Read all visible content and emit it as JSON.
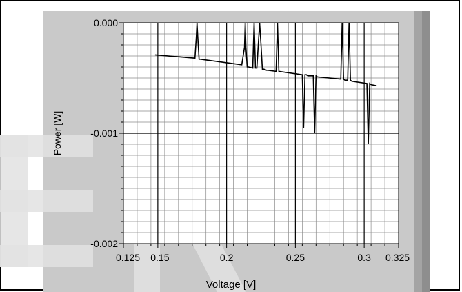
{
  "colors": {
    "panel": "#c9c9c9",
    "plot_bg": "#ffffff",
    "grid": "#000000",
    "trace": "#000000",
    "scroll_light": "#a4a4a4",
    "scroll_dark": "#8e8e8e",
    "watermark": "#e2e2e2"
  },
  "watermark": "ER",
  "chart_data": {
    "type": "line",
    "xlabel": "Voltage [V]",
    "ylabel": "Power [W]",
    "xlim": [
      0.125,
      0.325
    ],
    "ylim": [
      -0.002,
      0.0
    ],
    "x_ticks": [
      0.125,
      0.15,
      0.2,
      0.25,
      0.3,
      0.325
    ],
    "x_tick_labels": [
      "0.125",
      "0.15",
      "0.2",
      "0.25",
      "0.3",
      "0.325"
    ],
    "y_ticks": [
      0.0,
      -0.001,
      -0.002
    ],
    "y_tick_labels": [
      "0.000",
      "-0.001",
      "-0.002"
    ],
    "grid": true,
    "series": [
      {
        "x": [
          0.148,
          0.177,
          0.178,
          0.1785,
          0.179,
          0.18,
          0.181,
          0.211,
          0.213,
          0.2135,
          0.214,
          0.215,
          0.216,
          0.219,
          0.22,
          0.221,
          0.222,
          0.224,
          0.225,
          0.226,
          0.227,
          0.229,
          0.23,
          0.236,
          0.237,
          0.238,
          0.255,
          0.256,
          0.257,
          0.258,
          0.259,
          0.263,
          0.264,
          0.265,
          0.266,
          0.283,
          0.284,
          0.285,
          0.286,
          0.288,
          0.289,
          0.29,
          0.291,
          0.302,
          0.303,
          0.304,
          0.305,
          0.309
        ],
        "y": [
          -0.00029,
          -0.00032,
          -0.00013,
          0.0,
          -0.00012,
          -0.00033,
          -0.00033,
          -0.00038,
          -0.00022,
          0.0,
          -0.00022,
          -0.0004,
          -0.0004,
          -0.00041,
          0.0,
          -0.00041,
          -0.00041,
          0.0,
          -0.0002,
          -0.00042,
          -0.00042,
          -0.00043,
          -0.00043,
          -0.00044,
          0.0,
          -0.00044,
          -0.00047,
          -0.00095,
          -0.00047,
          -0.00047,
          -0.00048,
          -0.00048,
          -0.001,
          -0.00048,
          -0.00049,
          -0.00051,
          0.0,
          -0.00051,
          -0.00052,
          -0.00052,
          0.0,
          -0.00052,
          -0.00053,
          -0.00055,
          -0.0011,
          -0.00055,
          -0.00056,
          -0.00057
        ]
      }
    ]
  }
}
